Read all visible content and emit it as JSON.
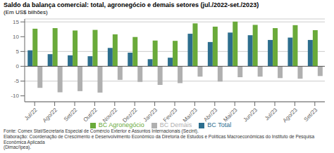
{
  "chart_data": {
    "type": "bar",
    "title": "Saldo da balança comercial: total, agronegócio e demais setores (jul./2022-set./2023)",
    "subtitle": "(Em US$ bilhões)",
    "annotations": [
      "Fonte: Comex Stat/Secretaria Especial de Comércio Exterior e Assuntos Internacionais (Secint).",
      "Elaboração: Coordenação de Crescimento e Desenvolvimento Econômico da Diretoria de Estudos e Políticas Macroeconômicas do Instituto de Pesquisa Econômica Aplicada",
      "(Dimac/Ipea)."
    ],
    "categories": [
      "Jul/22",
      "Ago/22",
      "Set/22",
      "Out/22",
      "Nov/22",
      "Dez/22",
      "Jan/23",
      "Fev/23",
      "Mar/23",
      "Abr/23",
      "Mai/23",
      "Jun/23",
      "Jul/23",
      "Ago/23",
      "Set/23"
    ],
    "series": [
      {
        "name": "BC Total",
        "color": "#2d6e8e",
        "values": [
          5.4,
          4.1,
          3.7,
          3.4,
          6.2,
          4.6,
          2.4,
          2.9,
          11.0,
          8.2,
          11.4,
          10.5,
          8.9,
          9.7,
          8.9
        ]
      },
      {
        "name": "BC Agronegócio",
        "color": "#6aaa3a",
        "values": [
          12.7,
          12.9,
          12.1,
          12.3,
          10.8,
          9.9,
          8.7,
          8.6,
          14.5,
          13.4,
          15.1,
          14.0,
          12.9,
          13.9,
          12.2
        ]
      },
      {
        "name": "BC Demais",
        "color": "#b0b0b0",
        "values": [
          -7.3,
          -8.8,
          -8.4,
          -8.9,
          -4.6,
          -5.3,
          -6.3,
          -5.7,
          -3.5,
          -5.2,
          -3.7,
          -3.5,
          -4.0,
          -4.2,
          -3.3
        ]
      }
    ],
    "ylim": [
      -12,
      16
    ],
    "yticks": [
      -10,
      -5,
      0,
      5,
      10,
      15
    ],
    "grid": true,
    "legend": "bottom"
  }
}
